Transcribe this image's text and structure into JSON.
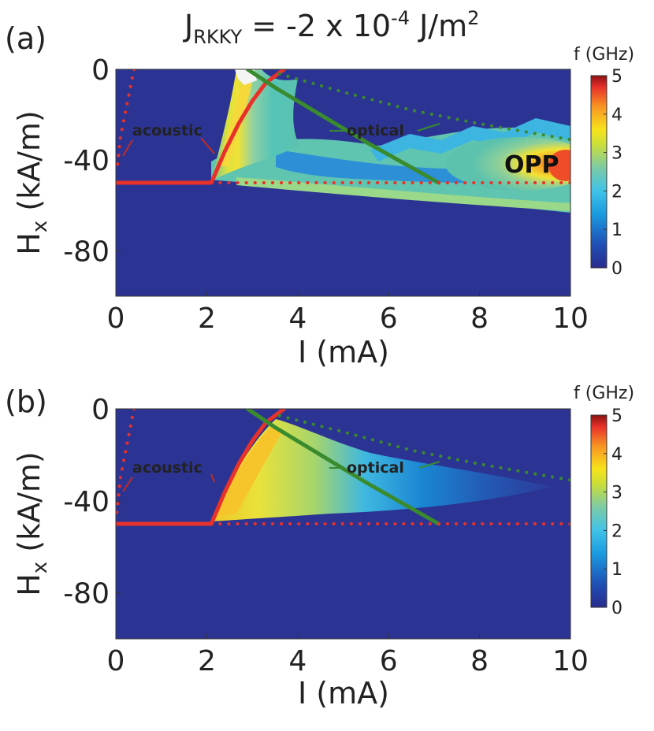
{
  "figure": {
    "title": {
      "main": "J",
      "sub": "RKKY",
      "rest": " = -2 x 10",
      "sup": "-4",
      "unit_main": " J/m",
      "unit_sup": "2"
    }
  },
  "chart_data": [
    {
      "panel_label": "(a)",
      "type": "heatmap",
      "xlabel": "I (mA)",
      "ylabel_main": "H",
      "ylabel_sub": "x",
      "ylabel_rest": " (kA/m)",
      "xlim": [
        0,
        10
      ],
      "ylim": [
        -100,
        0
      ],
      "xticks": [
        "0",
        "2",
        "4",
        "6",
        "8",
        "10"
      ],
      "yticks": [
        "0",
        "-40",
        "-80"
      ],
      "colorbar": {
        "title": "f (GHz)",
        "range": [
          0,
          5
        ],
        "ticks": [
          "5",
          "4",
          "3",
          "2",
          "1",
          "0"
        ]
      },
      "background_value": 0,
      "regions": [
        {
          "name": "acoustic-fan",
          "f_GHz": 3.5
        },
        {
          "name": "optical-band",
          "f_GHz": 2.2
        },
        {
          "name": "opp-region",
          "f_GHz": 4.5
        }
      ],
      "lines": [
        {
          "name": "acoustic-threshold-low",
          "style": "solid",
          "color": "#e8312a",
          "x": [
            0,
            2.1
          ],
          "y": [
            -50,
            -50
          ]
        },
        {
          "name": "acoustic-threshold-curve",
          "style": "solid",
          "color": "#e8312a",
          "x": [
            2.1,
            2.4,
            2.7,
            3.0,
            3.3,
            3.7
          ],
          "y": [
            -50,
            -36,
            -24,
            -14,
            -6,
            0
          ]
        },
        {
          "name": "optical-threshold",
          "style": "solid",
          "color": "#3a8a2e",
          "x": [
            2.9,
            3.5,
            4.5,
            5.5,
            6.3,
            7.1
          ],
          "y": [
            0,
            -8,
            -20,
            -32,
            -41,
            -50
          ]
        },
        {
          "name": "acoustic-dotted-horizontal",
          "style": "dotted",
          "color": "#e8312a",
          "x": [
            2.1,
            10
          ],
          "y": [
            -50,
            -50
          ]
        },
        {
          "name": "acoustic-dotted-vertical",
          "style": "dotted",
          "color": "#e8312a",
          "x": [
            0.4,
            0.25,
            0.1,
            0.02
          ],
          "y": [
            0,
            -15,
            -30,
            -45
          ]
        },
        {
          "name": "optical-dotted",
          "style": "dotted",
          "color": "#3a8a2e",
          "x": [
            3.6,
            5,
            6.5,
            8,
            10
          ],
          "y": [
            -2,
            -10,
            -18,
            -24,
            -31
          ]
        }
      ],
      "annotations": [
        {
          "name": "acoustic",
          "text": "acoustic",
          "color": "#e8312a"
        },
        {
          "name": "optical",
          "text": "optical",
          "color": "#3a8a2e"
        },
        {
          "name": "opp",
          "text": "OPP",
          "color": "#111111"
        }
      ]
    },
    {
      "panel_label": "(b)",
      "type": "heatmap",
      "xlabel": "I (mA)",
      "ylabel_main": "H",
      "ylabel_sub": "x",
      "ylabel_rest": " (kA/m)",
      "xlim": [
        0,
        10
      ],
      "ylim": [
        -100,
        0
      ],
      "xticks": [
        "0",
        "2",
        "4",
        "6",
        "8",
        "10"
      ],
      "yticks": [
        "0",
        "-40",
        "-80"
      ],
      "colorbar": {
        "title": "f (GHz)",
        "range": [
          0,
          5
        ],
        "ticks": [
          "5",
          "4",
          "3",
          "2",
          "1",
          "0"
        ]
      },
      "background_value": 0,
      "regions": [
        {
          "name": "acoustic-fan",
          "f_GHz": 3.0
        }
      ],
      "lines": [
        {
          "name": "acoustic-threshold-low",
          "style": "solid",
          "color": "#e8312a",
          "x": [
            0,
            2.1
          ],
          "y": [
            -50,
            -50
          ]
        },
        {
          "name": "acoustic-threshold-curve",
          "style": "solid",
          "color": "#e8312a",
          "x": [
            2.1,
            2.4,
            2.7,
            3.0,
            3.3,
            3.7
          ],
          "y": [
            -50,
            -36,
            -24,
            -14,
            -6,
            0
          ]
        },
        {
          "name": "optical-threshold",
          "style": "solid",
          "color": "#3a8a2e",
          "x": [
            2.9,
            3.5,
            4.5,
            5.5,
            6.3,
            7.1
          ],
          "y": [
            0,
            -8,
            -20,
            -32,
            -41,
            -50
          ]
        },
        {
          "name": "acoustic-dotted-horizontal",
          "style": "dotted",
          "color": "#e8312a",
          "x": [
            2.1,
            10
          ],
          "y": [
            -50,
            -50
          ]
        },
        {
          "name": "acoustic-dotted-vertical",
          "style": "dotted",
          "color": "#e8312a",
          "x": [
            0.4,
            0.25,
            0.1,
            0.02
          ],
          "y": [
            0,
            -15,
            -30,
            -45
          ]
        },
        {
          "name": "optical-dotted",
          "style": "dotted",
          "color": "#3a8a2e",
          "x": [
            3.6,
            5,
            6.5,
            8,
            10
          ],
          "y": [
            -3,
            -10,
            -18,
            -24,
            -31
          ]
        }
      ],
      "annotations": [
        {
          "name": "acoustic",
          "text": "acoustic",
          "color": "#e8312a"
        },
        {
          "name": "optical",
          "text": "optical",
          "color": "#3a8a2e"
        }
      ]
    }
  ]
}
